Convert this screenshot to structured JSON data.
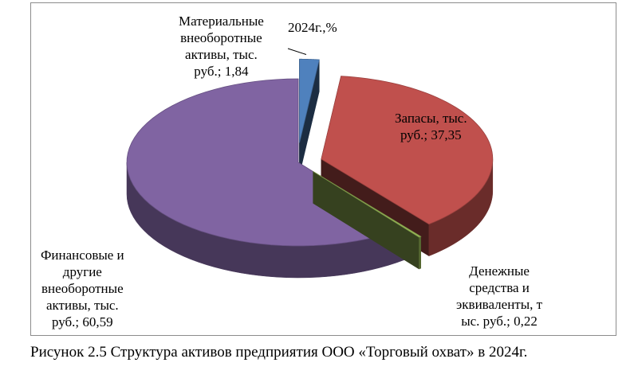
{
  "chart_data": {
    "type": "pie",
    "title": "2024г.,%",
    "style": "3d-exploded",
    "slices": [
      {
        "label": "Материальные внеоборотные активы, тыс. руб.",
        "value": 1.84,
        "color": "#4f81bd",
        "label_text": "Материальные\nвнеоборотные\nактивы, тыс.\nруб.; 1,84"
      },
      {
        "label": "Запасы, тыс. руб.",
        "value": 37.35,
        "color": "#c0504d",
        "label_text": "Запасы, тыс.\nруб.; 37,35"
      },
      {
        "label": "Денежные средства и эквиваленты, тыс. руб.",
        "value": 0.22,
        "color": "#9bbb59",
        "label_text": "Денежные\nсредства и\nэквиваленты, т\nыс. руб.; 0,22"
      },
      {
        "label": "Финансовые и другие внеоборотные активы, тыс. руб.",
        "value": 60.59,
        "color": "#8064a2",
        "label_text": "Финансовые и\nдругие\nвнеоборотные\nактивы, тыс.\nруб.; 60,59"
      }
    ]
  },
  "caption": "Рисунок 2.5 Структура активов предприятия ООО «Торговый охват» в 2024г."
}
